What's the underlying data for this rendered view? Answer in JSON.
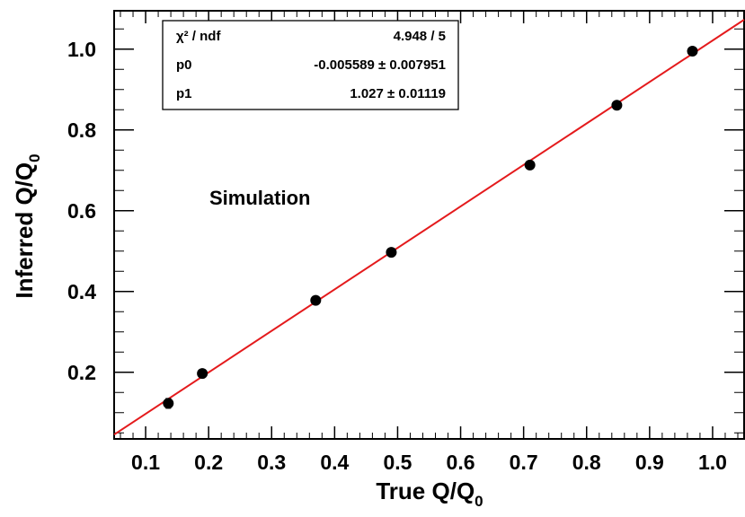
{
  "chart_data": {
    "type": "scatter",
    "xlabel": "True Q/Q",
    "xlabel_sub": "0",
    "ylabel": "Inferred Q/Q",
    "ylabel_sub": "0",
    "xlim": [
      0.05,
      1.05
    ],
    "ylim": [
      0.035,
      1.095
    ],
    "x_ticks": [
      0.1,
      0.2,
      0.3,
      0.4,
      0.5,
      0.6,
      0.7,
      0.8,
      0.9,
      1.0
    ],
    "x_tick_labels": [
      "0.1",
      "0.2",
      "0.3",
      "0.4",
      "0.5",
      "0.6",
      "0.7",
      "0.8",
      "0.9",
      "1.0"
    ],
    "y_ticks": [
      0.2,
      0.4,
      0.6,
      0.8,
      1.0
    ],
    "y_tick_labels": [
      "0.2",
      "0.4",
      "0.6",
      "0.8",
      "1.0"
    ],
    "grid": false,
    "annotation": "Simulation",
    "points": {
      "x": [
        0.136,
        0.19,
        0.37,
        0.49,
        0.71,
        0.848,
        0.968
      ],
      "y": [
        0.123,
        0.197,
        0.378,
        0.497,
        0.713,
        0.861,
        0.995
      ],
      "yerr": [
        0.012,
        0.006,
        0.005,
        0.005,
        0.005,
        0.005,
        0.005
      ]
    },
    "fit": {
      "type": "linear",
      "p0": -0.005589,
      "p1": 1.027,
      "color": "#e41a1c"
    },
    "stats_box": {
      "rows": [
        {
          "label": "χ² / ndf",
          "value": "4.948 / 5"
        },
        {
          "label": "p0",
          "value": "-0.005589 ± 0.007951"
        },
        {
          "label": "p1",
          "value": "1.027 ± 0.01119"
        }
      ]
    },
    "colors": {
      "points": "#000000",
      "fit": "#e41a1c",
      "axis": "#000000"
    }
  }
}
